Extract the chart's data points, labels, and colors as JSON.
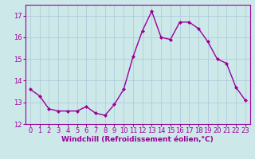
{
  "x": [
    0,
    1,
    2,
    3,
    4,
    5,
    6,
    7,
    8,
    9,
    10,
    11,
    12,
    13,
    14,
    15,
    16,
    17,
    18,
    19,
    20,
    21,
    22,
    23
  ],
  "y": [
    13.6,
    13.3,
    12.7,
    12.6,
    12.6,
    12.6,
    12.8,
    12.5,
    12.4,
    12.9,
    13.6,
    15.1,
    16.3,
    17.2,
    16.0,
    15.9,
    16.7,
    16.7,
    16.4,
    15.8,
    15.0,
    14.8,
    13.7,
    13.1
  ],
  "line_color": "#990099",
  "marker": "D",
  "marker_size": 2,
  "bg_color": "#cce8e8",
  "grid_color": "#aac8d8",
  "xlabel": "Windchill (Refroidissement éolien,°C)",
  "xlabel_color": "#990099",
  "tick_color": "#990099",
  "ylim": [
    12,
    17.5
  ],
  "xlim": [
    -0.5,
    23.5
  ],
  "yticks": [
    12,
    13,
    14,
    15,
    16,
    17
  ],
  "xticks": [
    0,
    1,
    2,
    3,
    4,
    5,
    6,
    7,
    8,
    9,
    10,
    11,
    12,
    13,
    14,
    15,
    16,
    17,
    18,
    19,
    20,
    21,
    22,
    23
  ],
  "tick_fontsize": 6,
  "xlabel_fontsize": 6.5,
  "linewidth": 1.0
}
